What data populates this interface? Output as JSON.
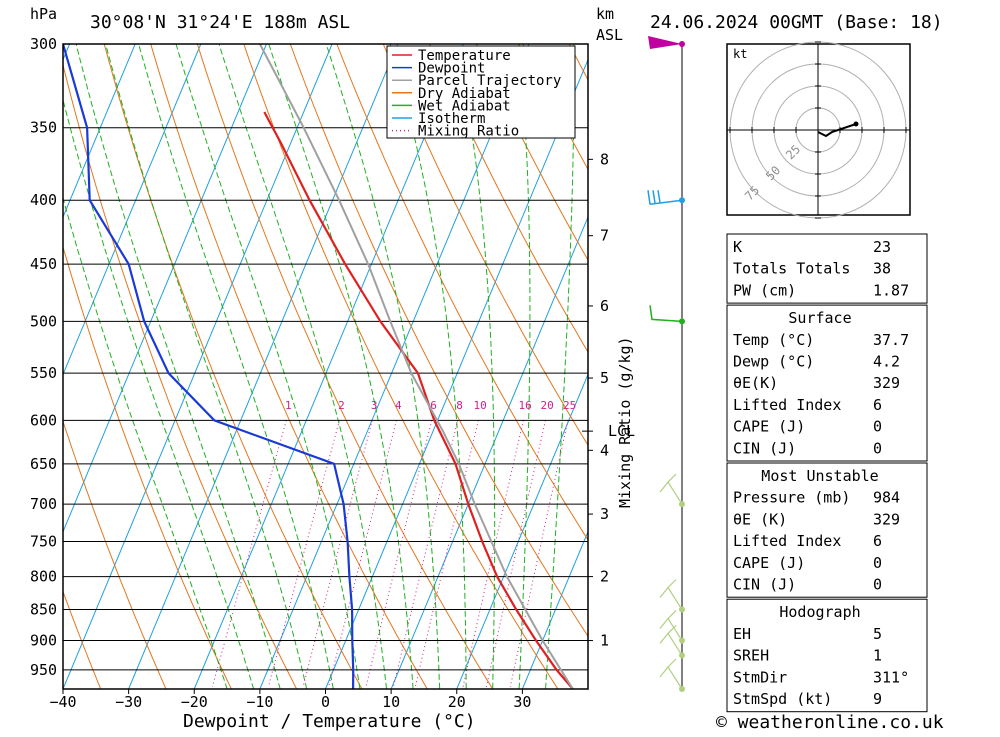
{
  "header": {
    "hpa_label": "hPa",
    "location": "30°08'N  31°24'E  188m  ASL",
    "km_label": "km",
    "asl_label": "ASL",
    "date": "24.06.2024  00GMT  (Base: 18)",
    "copyright": "© weatheronline.co.uk"
  },
  "chart_data": {
    "type": "line",
    "title": "",
    "xlabel": "Dewpoint / Temperature (°C)",
    "ylabel": "hPa",
    "mixing_ratio_label": "Mixing Ratio (g/kg)",
    "xlim": [
      -40,
      40
    ],
    "ylim": [
      300,
      984
    ],
    "skew_factor": 41.0,
    "pressure_ticks": [
      300,
      350,
      400,
      450,
      500,
      550,
      600,
      650,
      700,
      750,
      800,
      850,
      900,
      950
    ],
    "pressure_tick_labels": [
      "300",
      "350",
      "400",
      "450",
      "500",
      "550",
      "600",
      "650",
      "700",
      "750",
      "800",
      "850",
      "900",
      "950"
    ],
    "temp_ticks": [
      -40,
      -30,
      -20,
      -10,
      0,
      10,
      20,
      30
    ],
    "temp_tick_labels": [
      "−40",
      "−30",
      "−20",
      "−10",
      "0",
      "10",
      "20",
      "30"
    ],
    "km_ticks": [
      {
        "km": 1,
        "p": 900,
        "label": "1"
      },
      {
        "km": 2,
        "p": 800,
        "label": "2"
      },
      {
        "km": 3,
        "p": 713,
        "label": "3"
      },
      {
        "km": 4,
        "p": 634,
        "label": "4"
      },
      {
        "km": 5,
        "p": 555,
        "label": "5"
      },
      {
        "km": 6,
        "p": 486,
        "label": "6"
      },
      {
        "km": 7,
        "p": 427,
        "label": "7"
      },
      {
        "km": 8,
        "p": 371,
        "label": "8"
      }
    ],
    "lcl": {
      "p": 612,
      "label": "LCL"
    },
    "mixing_ratio_values": [
      1,
      2,
      3,
      4,
      6,
      8,
      10,
      16,
      20,
      25
    ],
    "mixing_ratio_labels": [
      "1",
      "2",
      "3",
      "4",
      "6",
      "8",
      "10",
      "16",
      "20",
      "25"
    ],
    "mixing_ratio_label_p": 592,
    "series": [
      {
        "name": "Temperature",
        "color": "#e02020",
        "points": [
          [
            984,
            37.7
          ],
          [
            950,
            34.0
          ],
          [
            900,
            29.0
          ],
          [
            850,
            24.0
          ],
          [
            800,
            19.0
          ],
          [
            750,
            14.5
          ],
          [
            700,
            10.0
          ],
          [
            650,
            5.5
          ],
          [
            600,
            -0.5
          ],
          [
            550,
            -6.0
          ],
          [
            500,
            -15.0
          ],
          [
            450,
            -24.0
          ],
          [
            400,
            -33.5
          ],
          [
            360,
            -41.5
          ],
          [
            340,
            -46.0
          ]
        ]
      },
      {
        "name": "Dewpoint",
        "color": "#1a3ad8",
        "points": [
          [
            984,
            4.2
          ],
          [
            950,
            3.0
          ],
          [
            900,
            1.0
          ],
          [
            850,
            -1.0
          ],
          [
            800,
            -3.5
          ],
          [
            750,
            -6.0
          ],
          [
            700,
            -9.0
          ],
          [
            650,
            -13.0
          ],
          [
            600,
            -34.0
          ],
          [
            550,
            -44.0
          ],
          [
            500,
            -51.0
          ],
          [
            450,
            -57.0
          ],
          [
            400,
            -67.0
          ],
          [
            350,
            -72.0
          ],
          [
            300,
            -81.0
          ]
        ]
      },
      {
        "name": "Parcel Trajectory",
        "color": "#a0a0a0",
        "points": [
          [
            984,
            37.7
          ],
          [
            900,
            30.0
          ],
          [
            800,
            20.5
          ],
          [
            700,
            11.0
          ],
          [
            650,
            6.0
          ],
          [
            612,
            1.5
          ],
          [
            550,
            -7.0
          ],
          [
            500,
            -13.5
          ],
          [
            450,
            -20.5
          ],
          [
            400,
            -29.0
          ],
          [
            350,
            -39.0
          ],
          [
            300,
            -51.0
          ]
        ]
      }
    ],
    "legend": {
      "placement": "top-center",
      "entries": [
        {
          "name": "Temperature",
          "color": "#e02020",
          "style": "solid"
        },
        {
          "name": "Dewpoint",
          "color": "#1a3ad8",
          "style": "solid"
        },
        {
          "name": "Parcel Trajectory",
          "color": "#a0a0a0",
          "style": "solid"
        },
        {
          "name": "Dry Adiabat",
          "color": "#e07820",
          "style": "solid"
        },
        {
          "name": "Wet Adiabat",
          "color": "#20b020",
          "style": "solid"
        },
        {
          "name": "Isotherm",
          "color": "#20a0e0",
          "style": "solid"
        },
        {
          "name": "Mixing Ratio",
          "color": "#d02090",
          "style": "dotted"
        }
      ]
    },
    "wind_barbs": [
      {
        "p": 300,
        "color": "#c000a0"
      },
      {
        "p": 400,
        "color": "#20a0e0"
      },
      {
        "p": 500,
        "color": "#20b020"
      },
      {
        "p": 700,
        "color": "#b0d080"
      },
      {
        "p": 850,
        "color": "#b0d080"
      },
      {
        "p": 900,
        "color": "#b0d080"
      },
      {
        "p": 925,
        "color": "#b0d080"
      },
      {
        "p": 984,
        "color": "#b0d080"
      }
    ]
  },
  "hodograph": {
    "unit_label": "kt",
    "ring_labels": [
      "25",
      "50",
      "75"
    ]
  },
  "indices": {
    "basic": [
      {
        "label": "K",
        "value": "23"
      },
      {
        "label": "Totals Totals",
        "value": "38"
      },
      {
        "label": "PW (cm)",
        "value": "1.87"
      }
    ],
    "surface": {
      "title": "Surface",
      "rows": [
        {
          "label": "Temp (°C)",
          "value": "37.7"
        },
        {
          "label": "Dewp (°C)",
          "value": "4.2"
        },
        {
          "label": "θE(K)",
          "value": "329"
        },
        {
          "label": "Lifted Index",
          "value": "6"
        },
        {
          "label": "CAPE (J)",
          "value": "0"
        },
        {
          "label": "CIN (J)",
          "value": "0"
        }
      ]
    },
    "most_unstable": {
      "title": "Most Unstable",
      "rows": [
        {
          "label": "Pressure (mb)",
          "value": "984"
        },
        {
          "label": "θE (K)",
          "value": "329"
        },
        {
          "label": "Lifted Index",
          "value": "6"
        },
        {
          "label": "CAPE (J)",
          "value": "0"
        },
        {
          "label": "CIN (J)",
          "value": "0"
        }
      ]
    },
    "hodograph_box": {
      "title": "Hodograph",
      "rows": [
        {
          "label": "EH",
          "value": "5"
        },
        {
          "label": "SREH",
          "value": "1"
        },
        {
          "label": "StmDir",
          "value": "311°"
        },
        {
          "label": "StmSpd (kt)",
          "value": "9"
        }
      ]
    }
  }
}
